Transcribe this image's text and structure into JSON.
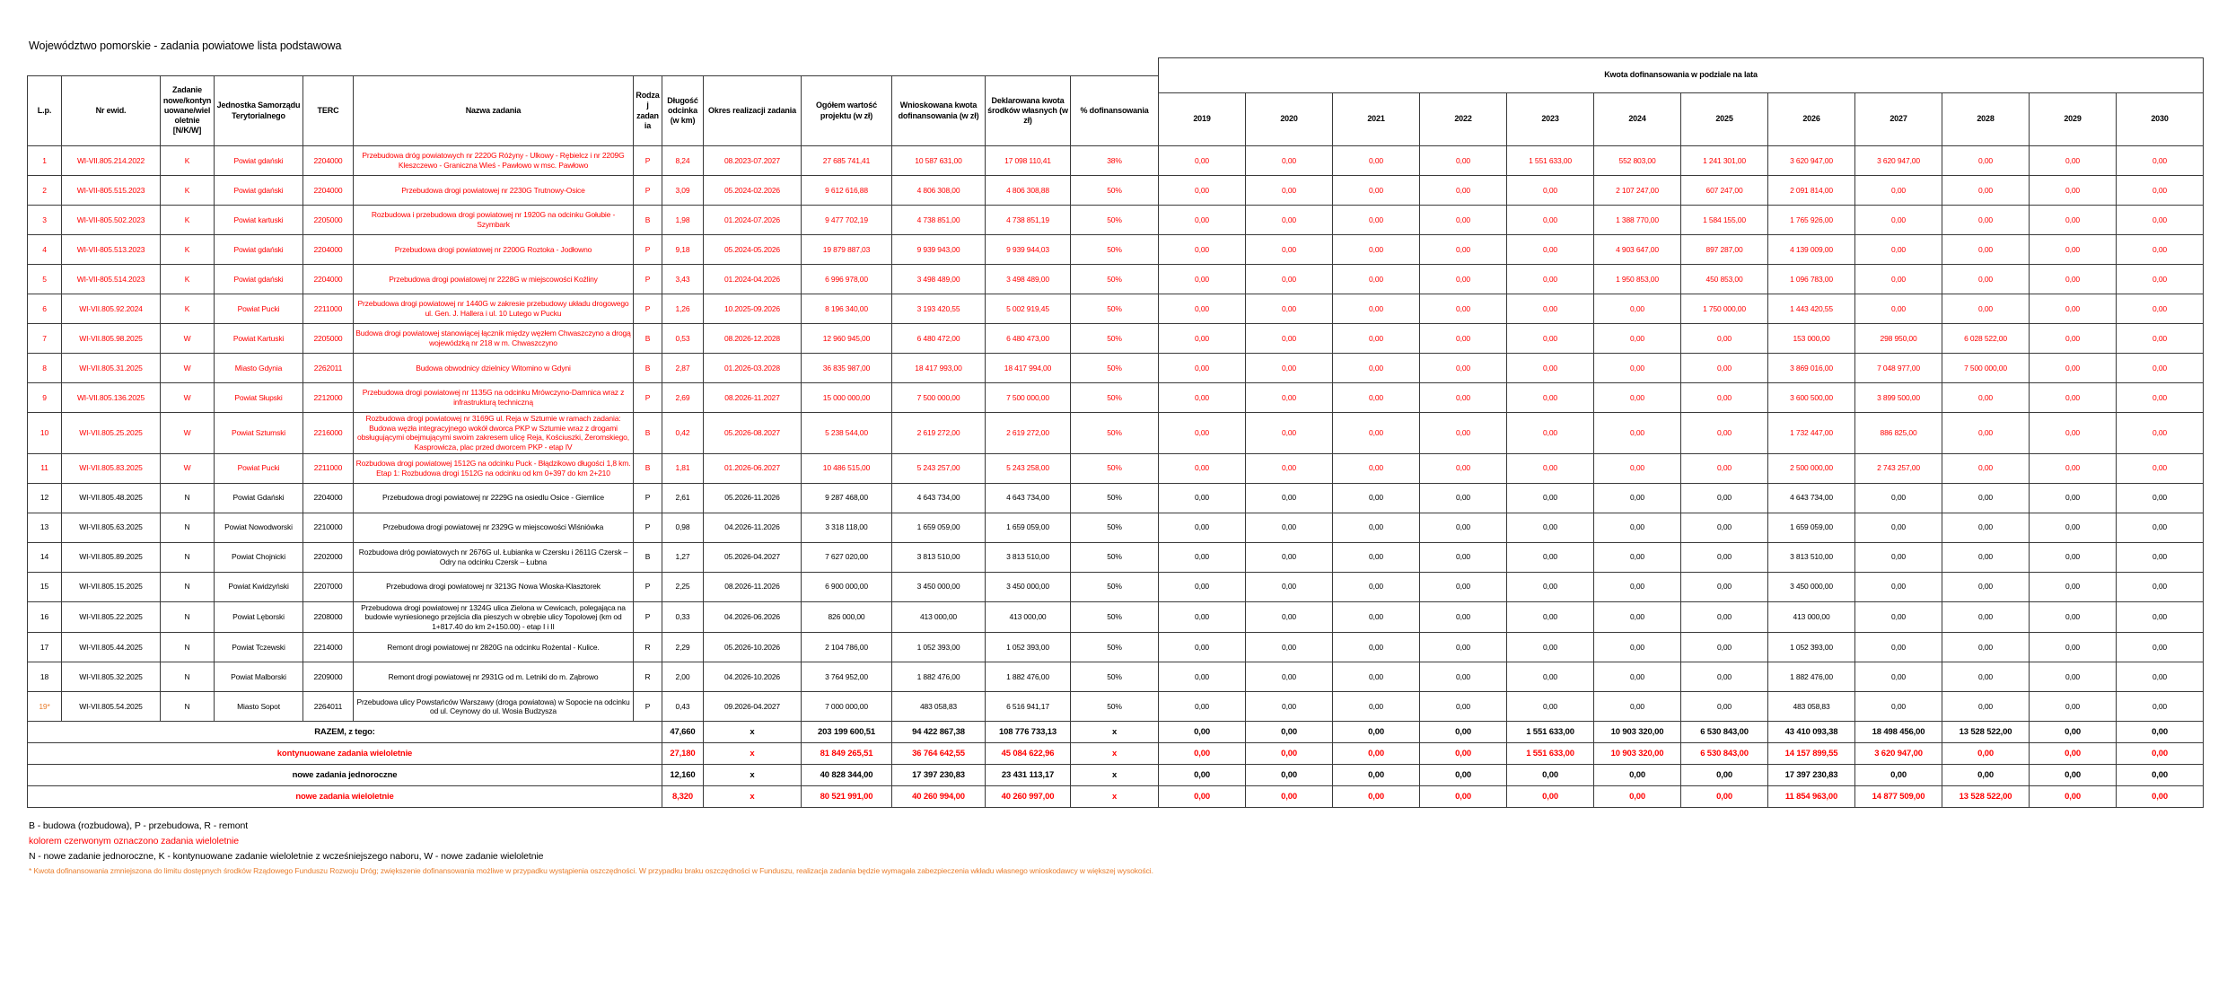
{
  "title": "Województwo pomorskie - zadania powiatowe lista podstawowa",
  "colors": {
    "red": "#ff0000",
    "black": "#000000",
    "orange": "#e97d2c"
  },
  "table": {
    "headers": {
      "lp": "L.p.",
      "nr": "Nr ewid.",
      "kat": "Zadanie nowe/kontynuowane/wieloletnie [N/K/W]",
      "jst": "Jednostka Samorządu Terytorialnego",
      "terc": "TERC",
      "nazwa": "Nazwa zadania",
      "rodzaj": "Rodzaj zadania",
      "dlugosc": "Długość odcinka (w km)",
      "okres": "Okres realizacji zadania",
      "ogolem": "Ogółem wartość projektu  (w zł)",
      "wnioskowana": "Wnioskowana kwota dofinansowania (w zł)",
      "deklarowana": "Deklarowana kwota środków własnych (w zł)",
      "procent": "% dofinansowania",
      "years_group": "Kwota dofinansowania w podziale na lata",
      "years": [
        "2019",
        "2020",
        "2021",
        "2022",
        "2023",
        "2024",
        "2025",
        "2026",
        "2027",
        "2028",
        "2029",
        "2030"
      ]
    },
    "rows": [
      {
        "lp": "1",
        "nr": "WI-VII.805.214.2022",
        "kat": "K",
        "jst": "Powiat gdański",
        "terc": "2204000",
        "nazwa": "Przebudowa dróg powiatowych nr 2220G Różyny - Ulkowy - Rębielcz i nr 2209G Kleszczewo - Graniczna Wieś - Pawłowo w msc. Pawłowo",
        "rodzaj": "P",
        "dlugosc": "8,24",
        "okres": "08.2023-07.2027",
        "ogolem": "27 685 741,41",
        "wnioskowana": "10 587 631,00",
        "deklarowana": "17 098 110,41",
        "procent": "38%",
        "lata": [
          "0,00",
          "0,00",
          "0,00",
          "0,00",
          "1 551 633,00",
          "552 803,00",
          "1 241 301,00",
          "3 620 947,00",
          "3 620 947,00",
          "0,00",
          "0,00",
          "0,00"
        ],
        "color": "red"
      },
      {
        "lp": "2",
        "nr": "WI-VII-805.515.2023",
        "kat": "K",
        "jst": "Powiat gdański",
        "terc": "2204000",
        "nazwa": "Przebudowa drogi powiatowej nr 2230G Trutnowy-Osice",
        "rodzaj": "P",
        "dlugosc": "3,09",
        "okres": "05.2024-02.2026",
        "ogolem": "9 612 616,88",
        "wnioskowana": "4 806 308,00",
        "deklarowana": "4 806 308,88",
        "procent": "50%",
        "lata": [
          "0,00",
          "0,00",
          "0,00",
          "0,00",
          "0,00",
          "2 107 247,00",
          "607 247,00",
          "2 091 814,00",
          "0,00",
          "0,00",
          "0,00",
          "0,00"
        ],
        "color": "red"
      },
      {
        "lp": "3",
        "nr": "WI-VII-805.502.2023",
        "kat": "K",
        "jst": "Powiat kartuski",
        "terc": "2205000",
        "nazwa": "Rozbudowa i przebudowa drogi powiatowej nr 1920G na odcinku Gołubie - Szymbark",
        "rodzaj": "B",
        "dlugosc": "1,98",
        "okres": "01.2024-07.2026",
        "ogolem": "9 477 702,19",
        "wnioskowana": "4 738 851,00",
        "deklarowana": "4 738 851,19",
        "procent": "50%",
        "lata": [
          "0,00",
          "0,00",
          "0,00",
          "0,00",
          "0,00",
          "1 388 770,00",
          "1 584 155,00",
          "1 765 926,00",
          "0,00",
          "0,00",
          "0,00",
          "0,00"
        ],
        "color": "red"
      },
      {
        "lp": "4",
        "nr": "WI-VII-805.513.2023",
        "kat": "K",
        "jst": "Powiat gdański",
        "terc": "2204000",
        "nazwa": "Przebudowa drogi powiatowej nr 2200G Roztoka - Jodłowno",
        "rodzaj": "P",
        "dlugosc": "9,18",
        "okres": "05.2024-05.2026",
        "ogolem": "19 879 887,03",
        "wnioskowana": "9 939 943,00",
        "deklarowana": "9 939 944,03",
        "procent": "50%",
        "lata": [
          "0,00",
          "0,00",
          "0,00",
          "0,00",
          "0,00",
          "4 903 647,00",
          "897 287,00",
          "4 139 009,00",
          "0,00",
          "0,00",
          "0,00",
          "0,00"
        ],
        "color": "red"
      },
      {
        "lp": "5",
        "nr": "WI-VII-805.514.2023",
        "kat": "K",
        "jst": "Powiat gdański",
        "terc": "2204000",
        "nazwa": "Przebudowa drogi powiatowej nr 2228G w miejscowości Koźliny",
        "rodzaj": "P",
        "dlugosc": "3,43",
        "okres": "01.2024-04.2026",
        "ogolem": "6 996 978,00",
        "wnioskowana": "3 498 489,00",
        "deklarowana": "3 498 489,00",
        "procent": "50%",
        "lata": [
          "0,00",
          "0,00",
          "0,00",
          "0,00",
          "0,00",
          "1 950 853,00",
          "450 853,00",
          "1 096 783,00",
          "0,00",
          "0,00",
          "0,00",
          "0,00"
        ],
        "color": "red"
      },
      {
        "lp": "6",
        "nr": "WI-VII.805.92.2024",
        "kat": "K",
        "jst": "Powiat Pucki",
        "terc": "2211000",
        "nazwa": "Przebudowa drogi powiatowej nr 1440G w zakresie przebudowy układu drogowego ul. Gen. J. Hallera i ul. 10 Lutego w Pucku",
        "rodzaj": "P",
        "dlugosc": "1,26",
        "okres": "10.2025-09.2026",
        "ogolem": "8 196 340,00",
        "wnioskowana": "3 193 420,55",
        "deklarowana": "5 002 919,45",
        "procent": "50%",
        "lata": [
          "0,00",
          "0,00",
          "0,00",
          "0,00",
          "0,00",
          "0,00",
          "1 750 000,00",
          "1 443 420,55",
          "0,00",
          "0,00",
          "0,00",
          "0,00"
        ],
        "color": "red"
      },
      {
        "lp": "7",
        "nr": "WI-VII.805.98.2025",
        "kat": "W",
        "jst": "Powiat Kartuski",
        "terc": "2205000",
        "nazwa": "Budowa drogi powiatowej stanowiącej łącznik między węzłem Chwaszczyno a drogą wojewódzką nr 218 w m. Chwaszczyno",
        "rodzaj": "B",
        "dlugosc": "0,53",
        "okres": "08.2026-12.2028",
        "ogolem": "12 960 945,00",
        "wnioskowana": "6 480 472,00",
        "deklarowana": "6 480 473,00",
        "procent": "50%",
        "lata": [
          "0,00",
          "0,00",
          "0,00",
          "0,00",
          "0,00",
          "0,00",
          "0,00",
          "153 000,00",
          "298 950,00",
          "6 028 522,00",
          "0,00",
          "0,00"
        ],
        "color": "red"
      },
      {
        "lp": "8",
        "nr": "WI-VII.805.31.2025",
        "kat": "W",
        "jst": "Miasto Gdynia",
        "terc": "2262011",
        "nazwa": "Budowa obwodnicy dzielnicy Witomino w Gdyni",
        "rodzaj": "B",
        "dlugosc": "2,87",
        "okres": "01.2026-03.2028",
        "ogolem": "36 835 987,00",
        "wnioskowana": "18 417 993,00",
        "deklarowana": "18 417 994,00",
        "procent": "50%",
        "lata": [
          "0,00",
          "0,00",
          "0,00",
          "0,00",
          "0,00",
          "0,00",
          "0,00",
          "3 869 016,00",
          "7 048 977,00",
          "7 500 000,00",
          "0,00",
          "0,00"
        ],
        "color": "red"
      },
      {
        "lp": "9",
        "nr": "WI-VII.805.136.2025",
        "kat": "W",
        "jst": "Powiat Słupski",
        "terc": "2212000",
        "nazwa": "Przebudowa drogi powiatowej nr 1135G na odcinku Mrówczyno-Damnica wraz z infrastrukturą techniczną",
        "rodzaj": "P",
        "dlugosc": "2,69",
        "okres": "08.2026-11.2027",
        "ogolem": "15 000 000,00",
        "wnioskowana": "7 500 000,00",
        "deklarowana": "7 500 000,00",
        "procent": "50%",
        "lata": [
          "0,00",
          "0,00",
          "0,00",
          "0,00",
          "0,00",
          "0,00",
          "0,00",
          "3 600 500,00",
          "3 899 500,00",
          "0,00",
          "0,00",
          "0,00"
        ],
        "color": "red"
      },
      {
        "lp": "10",
        "nr": "WI-VII.805.25.2025",
        "kat": "W",
        "jst": "Powiat Sztumski",
        "terc": "2216000",
        "nazwa": "Rozbudowa drogi powiatowej nr 3169G ul. Reja w Sztumie  w ramach zadania: Budowa węzła integracyjnego wokół dworca PKP w Sztumie wraz z drogami obsługującymi obejmującymi swoim zakresem ulicę Reja, Kościuszki, Żeromskiego, Kasprowicza, plac przed dworcem PKP - etap IV",
        "rodzaj": "B",
        "dlugosc": "0,42",
        "okres": "05.2026-08.2027",
        "ogolem": "5 238 544,00",
        "wnioskowana": "2 619 272,00",
        "deklarowana": "2 619 272,00",
        "procent": "50%",
        "lata": [
          "0,00",
          "0,00",
          "0,00",
          "0,00",
          "0,00",
          "0,00",
          "0,00",
          "1 732 447,00",
          "886 825,00",
          "0,00",
          "0,00",
          "0,00"
        ],
        "color": "red"
      },
      {
        "lp": "11",
        "nr": "WI-VII.805.83.2025",
        "kat": "W",
        "jst": "Powiat Pucki",
        "terc": "2211000",
        "nazwa": "Rozbudowa drogi powiatowej 1512G na odcinku Puck - Błądzikowo długości 1,8 km. Etap 1: Rozbudowa drogi 1512G na odcinku od km 0+397 do km 2+210",
        "rodzaj": "B",
        "dlugosc": "1,81",
        "okres": "01.2026-06.2027",
        "ogolem": "10 486 515,00",
        "wnioskowana": "5 243 257,00",
        "deklarowana": "5 243 258,00",
        "procent": "50%",
        "lata": [
          "0,00",
          "0,00",
          "0,00",
          "0,00",
          "0,00",
          "0,00",
          "0,00",
          "2 500 000,00",
          "2 743 257,00",
          "0,00",
          "0,00",
          "0,00"
        ],
        "color": "red"
      },
      {
        "lp": "12",
        "nr": "WI-VII.805.48.2025",
        "kat": "N",
        "jst": "Powiat Gdański",
        "terc": "2204000",
        "nazwa": "Przebudowa drogi powiatowej nr 2229G na osiedlu Osice - Giemlice",
        "rodzaj": "P",
        "dlugosc": "2,61",
        "okres": "05.2026-11.2026",
        "ogolem": "9 287 468,00",
        "wnioskowana": "4 643 734,00",
        "deklarowana": "4 643 734,00",
        "procent": "50%",
        "lata": [
          "0,00",
          "0,00",
          "0,00",
          "0,00",
          "0,00",
          "0,00",
          "0,00",
          "4 643 734,00",
          "0,00",
          "0,00",
          "0,00",
          "0,00"
        ],
        "color": "black"
      },
      {
        "lp": "13",
        "nr": "WI-VII.805.63.2025",
        "kat": "N",
        "jst": "Powiat Nowodworski",
        "terc": "2210000",
        "nazwa": "Przebudowa drogi powiatowej nr 2329G w miejscowości Wiśniówka",
        "rodzaj": "P",
        "dlugosc": "0,98",
        "okres": "04.2026-11.2026",
        "ogolem": "3 318 118,00",
        "wnioskowana": "1 659 059,00",
        "deklarowana": "1 659 059,00",
        "procent": "50%",
        "lata": [
          "0,00",
          "0,00",
          "0,00",
          "0,00",
          "0,00",
          "0,00",
          "0,00",
          "1 659 059,00",
          "0,00",
          "0,00",
          "0,00",
          "0,00"
        ],
        "color": "black"
      },
      {
        "lp": "14",
        "nr": "WI-VII.805.89.2025",
        "kat": "N",
        "jst": "Powiat Chojnicki",
        "terc": "2202000",
        "nazwa": "Rozbudowa dróg powiatowych nr 2676G ul. Łubianka w Czersku i 2611G Czersk – Odry na odcinku Czersk – Łubna",
        "rodzaj": "B",
        "dlugosc": "1,27",
        "okres": "05.2026-04.2027",
        "ogolem": "7 627 020,00",
        "wnioskowana": "3 813 510,00",
        "deklarowana": "3 813 510,00",
        "procent": "50%",
        "lata": [
          "0,00",
          "0,00",
          "0,00",
          "0,00",
          "0,00",
          "0,00",
          "0,00",
          "3 813 510,00",
          "0,00",
          "0,00",
          "0,00",
          "0,00"
        ],
        "color": "black"
      },
      {
        "lp": "15",
        "nr": "WI-VII.805.15.2025",
        "kat": "N",
        "jst": "Powiat Kwidzyński",
        "terc": "2207000",
        "nazwa": "Przebudowa drogi powiatowej nr 3213G Nowa Wioska-Klasztorek",
        "rodzaj": "P",
        "dlugosc": "2,25",
        "okres": "08.2026-11.2026",
        "ogolem": "6 900 000,00",
        "wnioskowana": "3 450 000,00",
        "deklarowana": "3 450 000,00",
        "procent": "50%",
        "lata": [
          "0,00",
          "0,00",
          "0,00",
          "0,00",
          "0,00",
          "0,00",
          "0,00",
          "3 450 000,00",
          "0,00",
          "0,00",
          "0,00",
          "0,00"
        ],
        "color": "black"
      },
      {
        "lp": "16",
        "nr": "WI-VII.805.22.2025",
        "kat": "N",
        "jst": "Powiat Lęborski",
        "terc": "2208000",
        "nazwa": "Przebudowa drogi powiatowej nr 1324G ulica Zielona w Cewicach, polegająca na budowie wyniesionego przejścia dla pieszych w obrębie ulicy Topolowej  (km od 1+817.40 do km 2+150.00) - etap I i II",
        "rodzaj": "P",
        "dlugosc": "0,33",
        "okres": "04.2026-06.2026",
        "ogolem": "826 000,00",
        "wnioskowana": "413 000,00",
        "deklarowana": "413 000,00",
        "procent": "50%",
        "lata": [
          "0,00",
          "0,00",
          "0,00",
          "0,00",
          "0,00",
          "0,00",
          "0,00",
          "413 000,00",
          "0,00",
          "0,00",
          "0,00",
          "0,00"
        ],
        "color": "black"
      },
      {
        "lp": "17",
        "nr": "WI-VII.805.44.2025",
        "kat": "N",
        "jst": "Powiat Tczewski",
        "terc": "2214000",
        "nazwa": "Remont drogi powiatowej nr 2820G na odcinku Rożental - Kulice.",
        "rodzaj": "R",
        "dlugosc": "2,29",
        "okres": "05.2026-10.2026",
        "ogolem": "2 104 786,00",
        "wnioskowana": "1 052 393,00",
        "deklarowana": "1 052 393,00",
        "procent": "50%",
        "lata": [
          "0,00",
          "0,00",
          "0,00",
          "0,00",
          "0,00",
          "0,00",
          "0,00",
          "1 052 393,00",
          "0,00",
          "0,00",
          "0,00",
          "0,00"
        ],
        "color": "black"
      },
      {
        "lp": "18",
        "nr": "WI-VII.805.32.2025",
        "kat": "N",
        "jst": "Powiat Malborski",
        "terc": "2209000",
        "nazwa": "Remont drogi powiatowej nr 2931G od m. Letniki do m. Ząbrowo",
        "rodzaj": "R",
        "dlugosc": "2,00",
        "okres": "04.2026-10.2026",
        "ogolem": "3 764 952,00",
        "wnioskowana": "1 882 476,00",
        "deklarowana": "1 882 476,00",
        "procent": "50%",
        "lata": [
          "0,00",
          "0,00",
          "0,00",
          "0,00",
          "0,00",
          "0,00",
          "0,00",
          "1 882 476,00",
          "0,00",
          "0,00",
          "0,00",
          "0,00"
        ],
        "color": "black"
      },
      {
        "lp": "19*",
        "nr": "WI-VII.805.54.2025",
        "kat": "N",
        "jst": "Miasto Sopot",
        "terc": "2264011",
        "nazwa": "Przebudowa ulicy Powstańców Warszawy (droga powiatowa) w Sopocie na odcinku od ul. Ceynowy do ul. Wosia Budzysza",
        "rodzaj": "P",
        "dlugosc": "0,43",
        "okres": "09.2026-04.2027",
        "ogolem": "7 000 000,00",
        "wnioskowana": "483 058,83",
        "deklarowana": "6 516 941,17",
        "procent": "50%",
        "lata": [
          "0,00",
          "0,00",
          "0,00",
          "0,00",
          "0,00",
          "0,00",
          "0,00",
          "483 058,83",
          "0,00",
          "0,00",
          "0,00",
          "0,00"
        ],
        "color": "black",
        "lp_color": "orange"
      }
    ],
    "summary": [
      {
        "label": "RAZEM, z tego:",
        "dlugosc": "47,660",
        "okres": "x",
        "ogolem": "203 199 600,51",
        "wnioskowana": "94 422 867,38",
        "deklarowana": "108 776 733,13",
        "procent": "x",
        "lata": [
          "0,00",
          "0,00",
          "0,00",
          "0,00",
          "1 551 633,00",
          "10 903 320,00",
          "6 530 843,00",
          "43 410 093,38",
          "18 498 456,00",
          "13 528 522,00",
          "0,00",
          "0,00"
        ],
        "color": "black"
      },
      {
        "label": "kontynuowane zadania wieloletnie",
        "dlugosc": "27,180",
        "okres": "x",
        "ogolem": "81 849 265,51",
        "wnioskowana": "36 764 642,55",
        "deklarowana": "45 084 622,96",
        "procent": "x",
        "lata": [
          "0,00",
          "0,00",
          "0,00",
          "0,00",
          "1 551 633,00",
          "10 903 320,00",
          "6 530 843,00",
          "14 157 899,55",
          "3 620 947,00",
          "0,00",
          "0,00",
          "0,00"
        ],
        "color": "red"
      },
      {
        "label": "nowe zadania jednoroczne",
        "dlugosc": "12,160",
        "okres": "x",
        "ogolem": "40 828 344,00",
        "wnioskowana": "17 397 230,83",
        "deklarowana": "23 431 113,17",
        "procent": "x",
        "lata": [
          "0,00",
          "0,00",
          "0,00",
          "0,00",
          "0,00",
          "0,00",
          "0,00",
          "17 397 230,83",
          "0,00",
          "0,00",
          "0,00",
          "0,00"
        ],
        "color": "black"
      },
      {
        "label": "nowe zadania wieloletnie",
        "dlugosc": "8,320",
        "okres": "x",
        "ogolem": "80 521 991,00",
        "wnioskowana": "40 260 994,00",
        "deklarowana": "40 260 997,00",
        "procent": "x",
        "lata": [
          "0,00",
          "0,00",
          "0,00",
          "0,00",
          "0,00",
          "0,00",
          "0,00",
          "11 854 963,00",
          "14 877 509,00",
          "13 528 522,00",
          "0,00",
          "0,00"
        ],
        "color": "red"
      }
    ]
  },
  "footnotes": [
    {
      "text": "B - budowa (rozbudowa), P - przebudowa, R - remont",
      "color": "black",
      "small": false
    },
    {
      "text": "kolorem czerwonym oznaczono zadania wieloletnie",
      "color": "red",
      "small": false
    },
    {
      "text": "N - nowe zadanie jednoroczne, K - kontynuowane zadanie wieloletnie z wcześniejszego naboru, W - nowe zadanie wieloletnie",
      "color": "black",
      "small": false
    },
    {
      "text": "* Kwota dofinansowania zmniejszona do limitu dostępnych środków Rządowego Funduszu Rozwoju Dróg; zwiększenie dofinansowania możliwe w przypadku wystąpienia oszczędności. W przypadku braku oszczędności w Funduszu, realizacja zadania będzie wymagała zabezpieczenia wkładu własnego wnioskodawcy w większej wysokości.",
      "color": "orange",
      "small": true
    }
  ]
}
